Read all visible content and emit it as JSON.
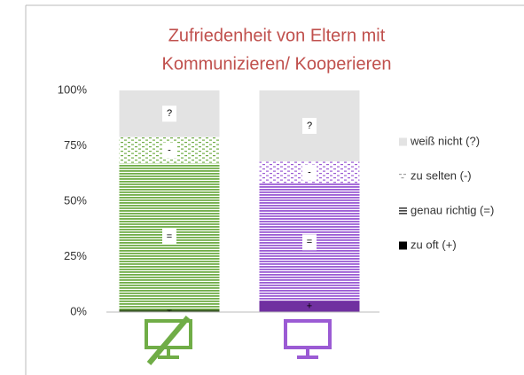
{
  "chart_data": {
    "type": "stacked_bar",
    "title": [
      "Zufriedenheit von Eltern mit",
      "Kommunizieren/ Kooperieren"
    ],
    "categories": [
      null,
      null
    ],
    "category_colors": [
      "#70ad47",
      "#9b5bd4"
    ],
    "category_dark_colors": [
      "#375623",
      "#7030a0"
    ],
    "series": [
      {
        "name": "zu oft (+)",
        "marker": "+",
        "pattern": "solid-dark",
        "color": "#000000",
        "values": [
          1,
          5
        ]
      },
      {
        "name": "genau richtig (=)",
        "marker": "=",
        "pattern": "stripes",
        "color": "#404040",
        "values": [
          66,
          53
        ]
      },
      {
        "name": "zu selten (-)",
        "marker": "-",
        "pattern": "dots",
        "color": "#a0a0a0",
        "values": [
          12,
          10
        ]
      },
      {
        "name": "weiß nicht (?)",
        "marker": "?",
        "pattern": "solid",
        "color": "#e3e3e3",
        "values": [
          21,
          32
        ]
      }
    ],
    "ylim": [
      0,
      100
    ],
    "yticks": [
      {
        "value": 0,
        "label": "0%"
      },
      {
        "value": 25,
        "label": "25%"
      },
      {
        "value": 50,
        "label": "50%"
      },
      {
        "value": 75,
        "label": "75%"
      },
      {
        "value": 100,
        "label": "100%"
      }
    ],
    "legend": "right"
  }
}
